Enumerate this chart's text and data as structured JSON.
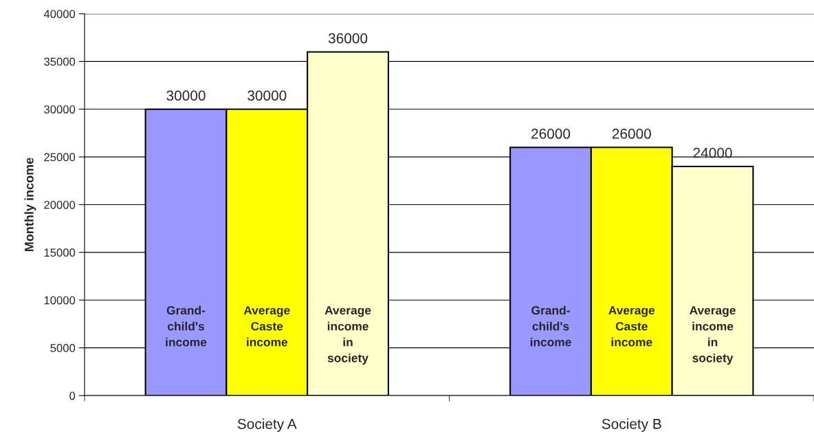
{
  "chart_data": {
    "type": "bar",
    "ylabel": "Monthly income",
    "categories": [
      "Society A",
      "Society B"
    ],
    "series": [
      {
        "name": "Grand-child's income",
        "color": "#9999ff",
        "values": [
          30000,
          26000
        ]
      },
      {
        "name": "Average Caste income",
        "color": "#ffff00",
        "values": [
          30000,
          26000
        ]
      },
      {
        "name": "Average income in society",
        "color": "#ffffcc",
        "values": [
          36000,
          24000
        ]
      }
    ],
    "ylim": [
      0,
      40000
    ],
    "yticks": [
      0,
      5000,
      10000,
      15000,
      20000,
      25000,
      30000,
      35000,
      40000
    ],
    "grid": "y",
    "data_labels": true,
    "legend": false
  }
}
